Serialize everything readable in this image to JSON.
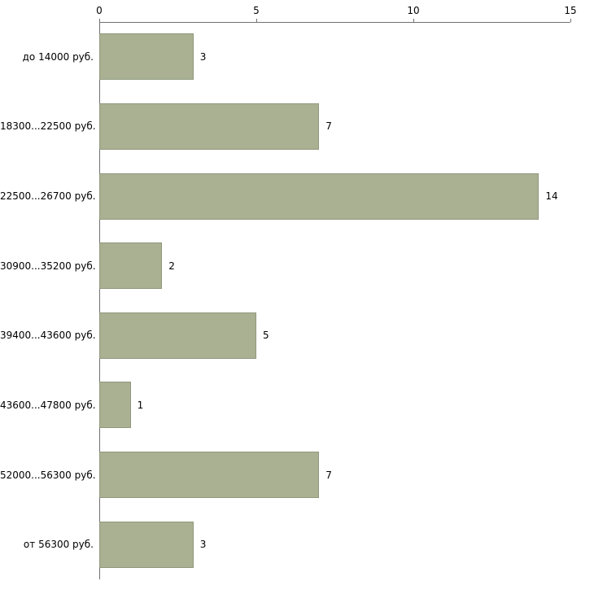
{
  "chart_data": {
    "type": "bar",
    "orientation": "horizontal",
    "title": "",
    "xlabel": "",
    "ylabel": "",
    "categories": [
      "до 14000 руб.",
      "18300...22500 руб.",
      "22500...26700 руб.",
      "30900...35200 руб.",
      "39400...43600 руб.",
      "43600...47800 руб.",
      "52000...56300 руб.",
      "от 56300 руб."
    ],
    "values": [
      3,
      7,
      14,
      2,
      5,
      1,
      7,
      3
    ],
    "xlim": [
      0,
      15
    ],
    "x_ticks": [
      0,
      5,
      10,
      15
    ],
    "x_axis_position": "top",
    "grid": false,
    "legend": false,
    "bar_color": "#a9b192",
    "bar_border_color": "#8f987c",
    "axis_color": "#707070",
    "background_color": "#ffffff",
    "text_color": "#000000"
  }
}
